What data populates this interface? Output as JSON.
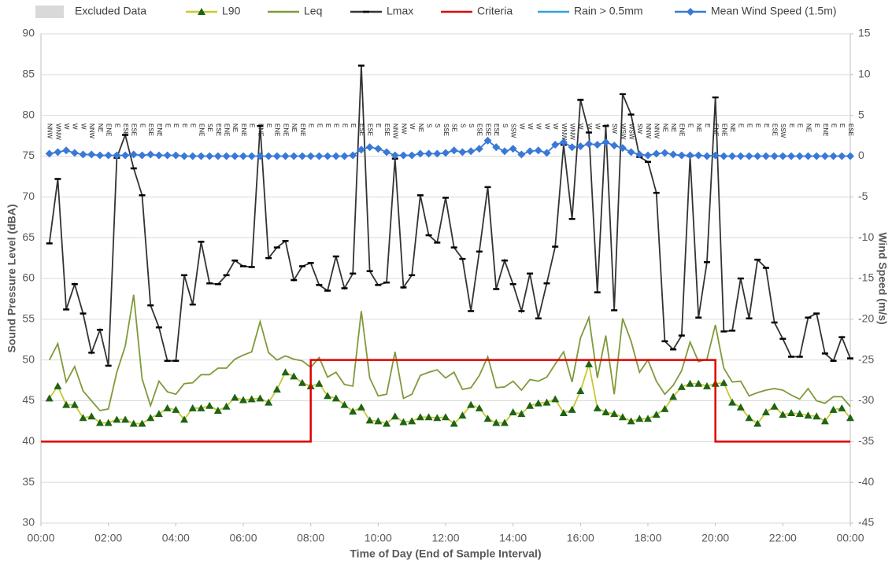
{
  "chart_data": {
    "type": "line",
    "x_label": "Time of Day (End of Sample Interval)",
    "y_label": "Sound Pressure Level (dBA)",
    "y2_label": "Wind Speed (m/s)",
    "xlim": [
      0,
      24
    ],
    "xticks": [
      {
        "value": 0,
        "label": "00:00"
      },
      {
        "value": 2,
        "label": "02:00"
      },
      {
        "value": 4,
        "label": "04:00"
      },
      {
        "value": 6,
        "label": "06:00"
      },
      {
        "value": 8,
        "label": "08:00"
      },
      {
        "value": 10,
        "label": "10:00"
      },
      {
        "value": 12,
        "label": "12:00"
      },
      {
        "value": 14,
        "label": "14:00"
      },
      {
        "value": 16,
        "label": "16:00"
      },
      {
        "value": 18,
        "label": "18:00"
      },
      {
        "value": 20,
        "label": "20:00"
      },
      {
        "value": 22,
        "label": "22:00"
      },
      {
        "value": 24,
        "label": "00:00"
      }
    ],
    "ylim": [
      30,
      90
    ],
    "yticks": [
      30,
      35,
      40,
      45,
      50,
      55,
      60,
      65,
      70,
      75,
      80,
      85,
      90
    ],
    "y2lim": [
      -45,
      15
    ],
    "y2ticks": [
      -45,
      -40,
      -35,
      -30,
      -25,
      -20,
      -15,
      -10,
      -5,
      0,
      5,
      10,
      15
    ],
    "grid": true,
    "x": [
      0.25,
      0.5,
      0.75,
      1,
      1.25,
      1.5,
      1.75,
      2,
      2.25,
      2.5,
      2.75,
      3,
      3.25,
      3.5,
      3.75,
      4,
      4.25,
      4.5,
      4.75,
      5,
      5.25,
      5.5,
      5.75,
      6,
      6.25,
      6.5,
      6.75,
      7,
      7.25,
      7.5,
      7.75,
      8,
      8.25,
      8.5,
      8.75,
      9,
      9.25,
      9.5,
      9.75,
      10,
      10.25,
      10.5,
      10.75,
      11,
      11.25,
      11.5,
      11.75,
      12,
      12.25,
      12.5,
      12.75,
      13,
      13.25,
      13.5,
      13.75,
      14,
      14.25,
      14.5,
      14.75,
      15,
      15.25,
      15.5,
      15.75,
      16,
      16.25,
      16.5,
      16.75,
      17,
      17.25,
      17.5,
      17.75,
      18,
      18.25,
      18.5,
      18.75,
      19,
      19.25,
      19.5,
      19.75,
      20,
      20.25,
      20.5,
      20.75,
      21,
      21.25,
      21.5,
      21.75,
      22,
      22.25,
      22.5,
      22.75,
      23,
      23.25,
      23.5,
      23.75,
      24
    ],
    "series": [
      {
        "name": "Excluded Data",
        "color": "#d9d9d9",
        "marker": "box",
        "values": [
          null,
          null,
          null,
          null,
          null,
          null,
          null,
          null,
          null,
          null,
          null,
          null,
          null,
          null,
          null,
          null,
          null,
          null,
          null,
          null,
          null,
          null,
          null,
          null,
          null,
          null,
          null,
          null,
          null,
          null,
          null,
          null,
          null,
          null,
          null,
          null,
          null,
          null,
          null,
          null,
          null,
          null,
          null,
          null,
          null,
          null,
          null,
          null,
          null,
          null,
          null,
          null,
          null,
          null,
          null,
          null,
          null,
          null,
          null,
          null,
          null,
          null,
          null,
          null,
          null,
          null,
          null,
          null,
          null,
          null,
          null,
          null,
          null,
          null,
          null,
          null,
          null,
          null,
          null,
          null,
          null,
          null,
          null,
          null,
          null,
          null,
          null,
          null,
          null,
          null,
          null,
          null,
          null,
          null,
          null,
          null
        ]
      },
      {
        "name": "L90",
        "color": "#c8c832",
        "marker": "triangle",
        "marker_color": "#1e6414",
        "values": [
          45.3,
          46.8,
          44.5,
          44.5,
          42.9,
          43.1,
          42.3,
          42.3,
          42.7,
          42.7,
          42.2,
          42.2,
          42.9,
          43.4,
          44.1,
          43.9,
          42.7,
          44.1,
          44.1,
          44.4,
          43.8,
          44.3,
          45.4,
          45.1,
          45.2,
          45.3,
          44.8,
          46.4,
          48.5,
          48.0,
          47.2,
          46.8,
          47.1,
          45.6,
          45.3,
          44.5,
          43.7,
          44.2,
          42.6,
          42.5,
          42.2,
          43.1,
          42.4,
          42.5,
          43.0,
          43.0,
          42.9,
          43.0,
          42.2,
          43.2,
          44.5,
          44.1,
          42.8,
          42.3,
          42.3,
          43.6,
          43.4,
          44.4,
          44.7,
          44.8,
          45.2,
          43.5,
          43.9,
          46.2,
          49.5,
          44.1,
          43.6,
          43.4,
          43.0,
          42.5,
          42.8,
          42.8,
          43.3,
          44.0,
          45.5,
          46.7,
          47.1,
          47.1,
          46.8,
          47.1,
          47.2,
          44.8,
          44.2,
          42.9,
          42.2,
          43.6,
          44.3,
          43.3,
          43.5,
          43.4,
          43.2,
          43.1,
          42.5,
          43.9,
          44.1,
          42.9
        ]
      },
      {
        "name": "Leq",
        "color": "#7f9a3a",
        "marker": "none",
        "values": [
          50.0,
          52.0,
          47.3,
          49.2,
          46.2,
          45.0,
          43.8,
          44.0,
          48.5,
          51.7,
          58.0,
          47.7,
          44.4,
          47.4,
          46.1,
          45.8,
          47.1,
          47.2,
          48.2,
          48.2,
          49.0,
          49.0,
          50.1,
          50.6,
          51.0,
          54.7,
          50.9,
          50.0,
          50.5,
          50.1,
          49.9,
          49.1,
          50.3,
          47.9,
          48.5,
          47.0,
          46.8,
          56.0,
          47.8,
          45.6,
          45.8,
          51.0,
          45.3,
          45.8,
          48.1,
          48.5,
          48.8,
          47.8,
          48.5,
          46.4,
          46.6,
          48.1,
          50.4,
          46.6,
          46.7,
          47.4,
          46.3,
          47.6,
          47.4,
          47.9,
          49.5,
          51.0,
          47.3,
          52.7,
          55.2,
          47.8,
          53.0,
          45.8,
          55.1,
          52.3,
          48.5,
          50.0,
          47.4,
          45.8,
          46.9,
          48.7,
          52.2,
          49.8,
          50.1,
          54.3,
          49.0,
          47.3,
          47.4,
          45.6,
          46.0,
          46.3,
          46.5,
          46.3,
          45.7,
          45.2,
          46.5,
          45.0,
          44.7,
          45.5,
          45.5,
          44.3
        ]
      },
      {
        "name": "Lmax",
        "color": "#333333",
        "marker": "dash",
        "marker_color": "#000000",
        "values": [
          64.3,
          72.2,
          56.2,
          59.3,
          55.7,
          50.9,
          53.7,
          49.3,
          74.8,
          77.6,
          73.5,
          70.2,
          56.7,
          54.0,
          49.9,
          49.9,
          60.4,
          56.8,
          64.5,
          59.4,
          59.3,
          60.4,
          62.2,
          61.5,
          61.4,
          78.7,
          62.5,
          63.8,
          64.6,
          59.8,
          61.5,
          61.9,
          59.2,
          58.5,
          62.7,
          58.8,
          60.6,
          86.1,
          60.9,
          59.2,
          59.5,
          74.7,
          58.9,
          60.4,
          70.2,
          65.3,
          64.4,
          69.9,
          63.8,
          62.4,
          56.0,
          63.3,
          71.2,
          58.7,
          62.2,
          59.3,
          56.0,
          60.6,
          55.1,
          59.4,
          63.9,
          76.4,
          67.3,
          81.9,
          77.9,
          58.3,
          78.7,
          56.1,
          82.6,
          80.1,
          74.9,
          74.3,
          70.5,
          52.3,
          51.3,
          53.0,
          75.0,
          55.2,
          62.0,
          82.2,
          53.5,
          53.6,
          60.0,
          55.1,
          62.3,
          61.3,
          54.6,
          52.6,
          50.4,
          50.4,
          55.2,
          55.7,
          50.8,
          49.9,
          52.8,
          50.2
        ]
      },
      {
        "name": "Criteria",
        "color": "#e00000",
        "marker": "none",
        "x": [
          0,
          8,
          8,
          20,
          20,
          24
        ],
        "values": [
          40,
          40,
          50,
          50,
          40,
          40
        ]
      },
      {
        "name": "Rain > 0.5mm",
        "color": "#33a0dc",
        "marker": "none",
        "values": [
          null,
          null,
          null,
          null,
          null,
          null,
          null,
          null,
          null,
          null,
          null,
          null,
          null,
          null,
          null,
          null,
          null,
          null,
          null,
          null,
          null,
          null,
          null,
          null,
          null,
          null,
          null,
          null,
          null,
          null,
          null,
          null,
          null,
          null,
          null,
          null,
          null,
          null,
          null,
          null,
          null,
          null,
          null,
          null,
          null,
          null,
          null,
          null,
          null,
          null,
          null,
          null,
          null,
          null,
          null,
          null,
          null,
          null,
          null,
          null,
          null,
          null,
          null,
          null,
          null,
          null,
          null,
          null,
          null,
          null,
          null,
          null,
          null,
          null,
          null,
          null,
          null,
          null,
          null,
          null,
          null,
          null,
          null,
          null,
          null,
          null,
          null,
          null,
          null,
          null,
          null,
          null,
          null,
          null,
          null,
          null
        ]
      },
      {
        "name": "Mean Wind Speed (1.5m)",
        "color": "#3a78d8",
        "marker": "diamond",
        "marker_color": "#3a78d8",
        "axis": "y2",
        "values": [
          0.3,
          0.5,
          0.7,
          0.4,
          0.2,
          0.2,
          0.1,
          0.1,
          0.1,
          0.1,
          0.2,
          0.1,
          0.2,
          0.1,
          0.1,
          0.1,
          0,
          0,
          0,
          0,
          0,
          0,
          0,
          0,
          0,
          0,
          0,
          0,
          0,
          0,
          0,
          0,
          0,
          0,
          0,
          0,
          0.1,
          0.8,
          1.1,
          0.9,
          0.5,
          0.1,
          0.1,
          0.1,
          0.3,
          0.3,
          0.3,
          0.4,
          0.7,
          0.5,
          0.6,
          0.9,
          1.9,
          1.1,
          0.6,
          0.9,
          0.2,
          0.6,
          0.7,
          0.4,
          1.4,
          1.7,
          1.1,
          1.2,
          1.5,
          1.4,
          1.7,
          1.3,
          1.0,
          0.5,
          0.2,
          0.1,
          0.3,
          0.4,
          0.2,
          0.1,
          0.1,
          0.1,
          0,
          0.1,
          0,
          0,
          0,
          0,
          0,
          0,
          0,
          0,
          0,
          0,
          0,
          0,
          0,
          0,
          0,
          0
        ],
        "direction_labels": [
          "NNW",
          "WNW",
          "W",
          "W",
          "W",
          "NNW",
          "NE",
          "ENE",
          "E",
          "ESE",
          "ESE",
          "E",
          "ESE",
          "ENE",
          "E",
          "E",
          "E",
          "E",
          "ENE",
          "SE",
          "ESE",
          "ENE",
          "NE",
          "ENE",
          "E",
          "ENE",
          "E",
          "ENE",
          "ENE",
          "NE",
          "ENE",
          "E",
          "E",
          "E",
          "E",
          "E",
          "E",
          "ESE",
          "ESE",
          "E",
          "ESE",
          "NNW",
          "NW",
          "W",
          "NE",
          "S",
          "S",
          "SSE",
          "SE",
          "S",
          "S",
          "ESE",
          "ESE",
          "ESE",
          "S",
          "SSW",
          "W",
          "W",
          "W",
          "W",
          "W",
          "WNW",
          "WNW",
          "W",
          "W",
          "W",
          "S",
          "SW",
          "WSW",
          "WSW",
          "SW",
          "NNW",
          "NNW",
          "NE",
          "NE",
          "ENE",
          "E",
          "NE",
          "E",
          "ENE",
          "ENE",
          "NE",
          "E",
          "E",
          "E",
          "E",
          "ESE",
          "SSW",
          "E",
          "E",
          "NE",
          "E",
          "ENE",
          "E",
          "E",
          "ESE"
        ]
      }
    ]
  }
}
